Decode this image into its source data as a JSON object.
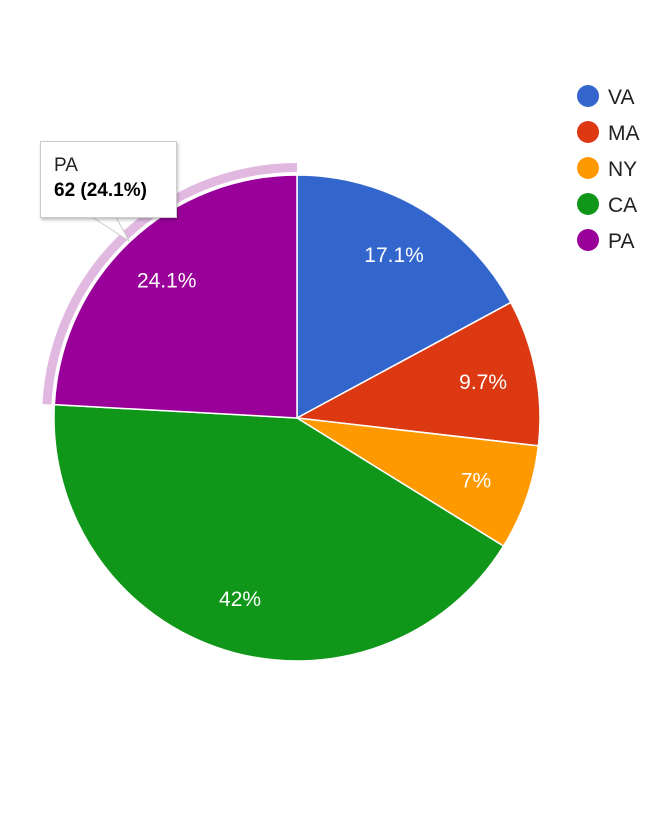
{
  "chart_data": {
    "type": "pie",
    "slices": [
      {
        "name": "VA",
        "value": 17.1,
        "label": "17.1%",
        "color": "#3366cc"
      },
      {
        "name": "MA",
        "value": 9.7,
        "label": "9.7%",
        "color": "#dc3912"
      },
      {
        "name": "NY",
        "value": 7.0,
        "label": "7%",
        "color": "#ff9900"
      },
      {
        "name": "CA",
        "value": 42.0,
        "label": "42%",
        "color": "#109618"
      },
      {
        "name": "PA",
        "value": 24.1,
        "label": "24.1%",
        "color": "#990099"
      }
    ],
    "legend": {
      "position": "top-right",
      "entries": [
        "VA",
        "MA",
        "NY",
        "CA",
        "PA"
      ]
    },
    "highlighted": "PA",
    "highlight_color": "#e0b8e0"
  },
  "tooltip": {
    "name": "PA",
    "value_text": "62 (24.1%)"
  }
}
